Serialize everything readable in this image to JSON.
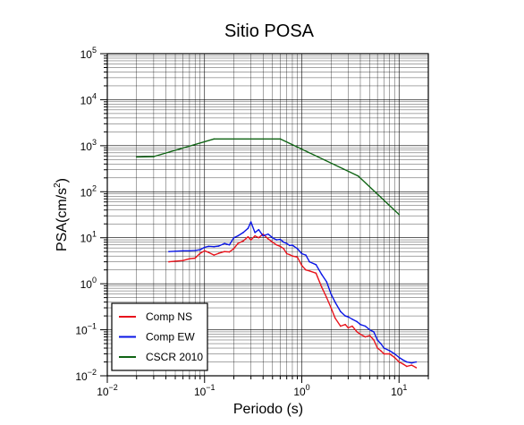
{
  "chart_data": {
    "type": "line",
    "title": "Sitio POSA",
    "xlabel": "Periodo (s)",
    "ylabel": {
      "prefix": "PSA(cm/s",
      "sup": "2",
      "suffix": ")"
    },
    "x_scale": "log",
    "y_scale": "log",
    "xlim": [
      0.01,
      20
    ],
    "ylim": [
      0.01,
      100000
    ],
    "grid": true,
    "legend_position": "bottom-left",
    "x_ticks": [
      {
        "base": "10",
        "exp": "−2",
        "value": 0.01
      },
      {
        "base": "10",
        "exp": "−1",
        "value": 0.1
      },
      {
        "base": "10",
        "exp": "0",
        "value": 1
      },
      {
        "base": "10",
        "exp": "1",
        "value": 10
      }
    ],
    "y_ticks": [
      {
        "base": "10",
        "exp": "−2",
        "value": 0.01
      },
      {
        "base": "10",
        "exp": "−1",
        "value": 0.1
      },
      {
        "base": "10",
        "exp": "0",
        "value": 1
      },
      {
        "base": "10",
        "exp": "1",
        "value": 10
      },
      {
        "base": "10",
        "exp": "2",
        "value": 100
      },
      {
        "base": "10",
        "exp": "3",
        "value": 1000
      },
      {
        "base": "10",
        "exp": "4",
        "value": 10000
      },
      {
        "base": "10",
        "exp": "5",
        "value": 100000
      }
    ],
    "series": [
      {
        "name": "Comp NS",
        "color": "#e8141c",
        "x": [
          0.043,
          0.05,
          0.06,
          0.07,
          0.08,
          0.09,
          0.1,
          0.11,
          0.125,
          0.14,
          0.16,
          0.18,
          0.2,
          0.22,
          0.25,
          0.28,
          0.3,
          0.33,
          0.36,
          0.4,
          0.45,
          0.5,
          0.55,
          0.6,
          0.65,
          0.7,
          0.75,
          0.8,
          0.9,
          1.0,
          1.1,
          1.2,
          1.4,
          1.6,
          1.8,
          2.0,
          2.2,
          2.5,
          2.8,
          3.0,
          3.3,
          3.7,
          4.0,
          4.5,
          5.0,
          5.5,
          6.0,
          6.5,
          7.0,
          8.0,
          9.0,
          10.0,
          11.0,
          12.0,
          13.5,
          15.0
        ],
        "y": [
          3.0,
          3.1,
          3.2,
          3.5,
          3.6,
          4.6,
          5.2,
          4.8,
          4.2,
          4.6,
          5.0,
          4.9,
          5.8,
          7.5,
          8.5,
          10.5,
          9.0,
          11.0,
          10.0,
          12.0,
          9.5,
          8.0,
          7.0,
          6.5,
          5.8,
          4.5,
          4.3,
          4.0,
          3.8,
          2.5,
          2.0,
          1.9,
          1.7,
          0.85,
          0.5,
          0.3,
          0.18,
          0.12,
          0.13,
          0.11,
          0.12,
          0.09,
          0.08,
          0.07,
          0.075,
          0.06,
          0.04,
          0.035,
          0.03,
          0.03,
          0.025,
          0.02,
          0.018,
          0.016,
          0.017,
          0.015
        ]
      },
      {
        "name": "Comp EW",
        "color": "#0a16e6",
        "x": [
          0.043,
          0.05,
          0.06,
          0.07,
          0.08,
          0.09,
          0.1,
          0.11,
          0.125,
          0.14,
          0.16,
          0.18,
          0.2,
          0.22,
          0.25,
          0.28,
          0.3,
          0.33,
          0.36,
          0.4,
          0.45,
          0.5,
          0.55,
          0.6,
          0.65,
          0.7,
          0.75,
          0.8,
          0.9,
          1.0,
          1.1,
          1.2,
          1.4,
          1.6,
          1.8,
          2.0,
          2.2,
          2.5,
          2.8,
          3.0,
          3.3,
          3.7,
          4.0,
          4.5,
          5.0,
          5.5,
          6.0,
          6.5,
          7.0,
          8.0,
          9.0,
          10.0,
          11.0,
          12.0,
          13.5,
          15.0
        ],
        "y": [
          5.0,
          5.1,
          5.2,
          5.2,
          5.3,
          5.5,
          6.2,
          6.5,
          6.4,
          6.6,
          7.5,
          7.0,
          10.0,
          11.0,
          13.0,
          16.0,
          22.0,
          13.0,
          15.0,
          11.0,
          12.0,
          10.0,
          9.0,
          9.2,
          8.0,
          7.5,
          6.8,
          6.9,
          5.8,
          4.5,
          4.2,
          3.0,
          2.6,
          1.6,
          1.1,
          0.6,
          0.4,
          0.25,
          0.2,
          0.19,
          0.17,
          0.15,
          0.13,
          0.12,
          0.1,
          0.09,
          0.06,
          0.05,
          0.04,
          0.035,
          0.03,
          0.025,
          0.022,
          0.02,
          0.019,
          0.02
        ]
      },
      {
        "name": "CSCR 2010",
        "color": "#0f6414",
        "x": [
          0.02,
          0.03,
          0.125,
          0.6,
          3.8,
          10.0
        ],
        "y": [
          570,
          580,
          1400,
          1400,
          220,
          32
        ]
      }
    ]
  }
}
